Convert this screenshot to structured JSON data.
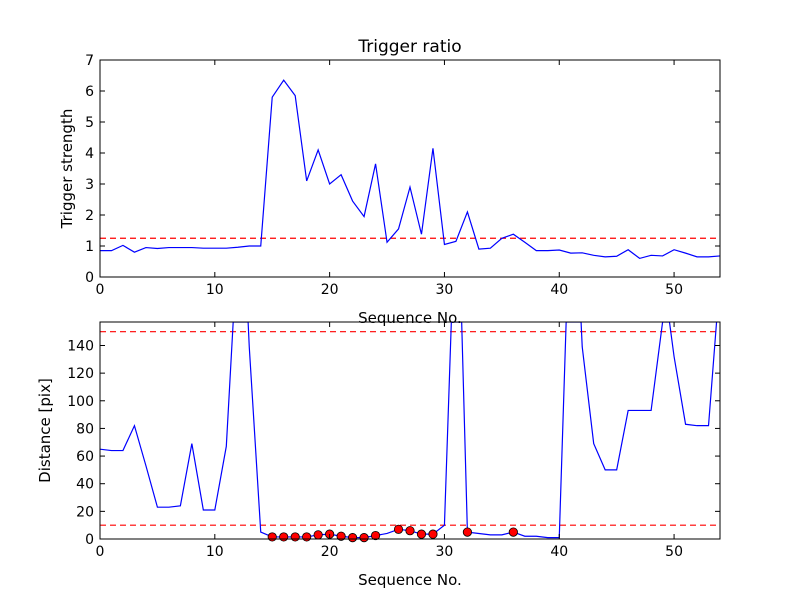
{
  "chart_data": [
    {
      "type": "line",
      "title": "Trigger ratio",
      "xlabel": "Sequence No.",
      "ylabel": "Trigger strength",
      "xlim": [
        0,
        54
      ],
      "ylim": [
        0,
        7
      ],
      "xticks": [
        0,
        10,
        20,
        30,
        40,
        50
      ],
      "yticks": [
        0,
        1,
        2,
        3,
        4,
        5,
        6,
        7
      ],
      "grid": false,
      "series": [
        {
          "color": "#0000ff",
          "x": [
            0,
            1,
            2,
            3,
            4,
            5,
            6,
            7,
            8,
            9,
            10,
            11,
            12,
            13,
            14,
            15,
            16,
            17,
            18,
            19,
            20,
            21,
            22,
            23,
            24,
            25,
            26,
            27,
            28,
            29,
            30,
            31,
            32,
            33,
            34,
            35,
            36,
            37,
            38,
            39,
            40,
            41,
            42,
            43,
            44,
            45,
            46,
            47,
            48,
            49,
            50,
            51,
            52,
            53,
            54
          ],
          "y": [
            0.85,
            0.85,
            1.02,
            0.8,
            0.95,
            0.92,
            0.95,
            0.95,
            0.95,
            0.93,
            0.93,
            0.93,
            0.96,
            1.0,
            1.0,
            5.8,
            6.35,
            5.85,
            3.1,
            4.1,
            3.0,
            3.3,
            2.45,
            1.95,
            3.65,
            1.12,
            1.55,
            2.9,
            1.38,
            4.15,
            1.05,
            1.15,
            2.1,
            0.9,
            0.93,
            1.25,
            1.38,
            1.12,
            0.85,
            0.85,
            0.87,
            0.77,
            0.78,
            0.7,
            0.65,
            0.67,
            0.88,
            0.6,
            0.7,
            0.68,
            0.88,
            0.77,
            0.65,
            0.65,
            0.68
          ]
        }
      ],
      "hlines": [
        {
          "y": 1.25,
          "color": "#ff0000",
          "style": "dashed"
        }
      ]
    },
    {
      "type": "line",
      "title": "",
      "xlabel": "Sequence No.",
      "ylabel": "Distance [pix]",
      "xlim": [
        0,
        54
      ],
      "ylim": [
        0,
        157
      ],
      "xticks": [
        0,
        10,
        20,
        30,
        40,
        50
      ],
      "yticks": [
        0,
        20,
        40,
        60,
        80,
        100,
        120,
        140
      ],
      "grid": false,
      "series": [
        {
          "color": "#0000ff",
          "x": [
            0,
            1,
            2,
            3,
            4,
            5,
            6,
            7,
            8,
            9,
            10,
            11,
            11.6,
            12.9,
            13,
            14,
            15,
            16,
            17,
            18,
            19,
            20,
            21,
            22,
            23,
            24,
            25,
            26,
            27,
            28,
            29,
            30,
            30.6,
            31.5,
            32,
            33,
            34,
            35,
            36,
            37,
            38,
            39,
            40,
            40.6,
            41.9,
            42,
            43,
            44,
            45,
            46,
            47,
            48,
            49,
            49.6,
            50,
            51,
            52,
            53,
            53.7
          ],
          "y": [
            65,
            64,
            64,
            82,
            53,
            23,
            23,
            24,
            69,
            21,
            21,
            67,
            157,
            157,
            139,
            5,
            1.5,
            1.5,
            1.5,
            1.5,
            3,
            3.5,
            2,
            1,
            1,
            2.5,
            4,
            7,
            6,
            3.5,
            3.5,
            10,
            157,
            157,
            5,
            4,
            3,
            3,
            5,
            2,
            2,
            1,
            1,
            157,
            157,
            139,
            69,
            50,
            50,
            93,
            93,
            93,
            157,
            157,
            132,
            83,
            82,
            82,
            157
          ]
        }
      ],
      "markers": {
        "color": "#ff0000",
        "x": [
          15,
          16,
          17,
          18,
          19,
          20,
          21,
          22,
          23,
          24,
          26,
          27,
          28,
          29,
          32,
          36
        ],
        "y": [
          1.5,
          1.5,
          1.5,
          1.5,
          3,
          3.5,
          2,
          1,
          1,
          2.5,
          7,
          6,
          3.5,
          3.5,
          5,
          5
        ]
      },
      "hlines": [
        {
          "y": 150,
          "color": "#ff0000",
          "style": "dashed"
        },
        {
          "y": 10,
          "color": "#ff0000",
          "style": "dashed"
        }
      ]
    }
  ]
}
